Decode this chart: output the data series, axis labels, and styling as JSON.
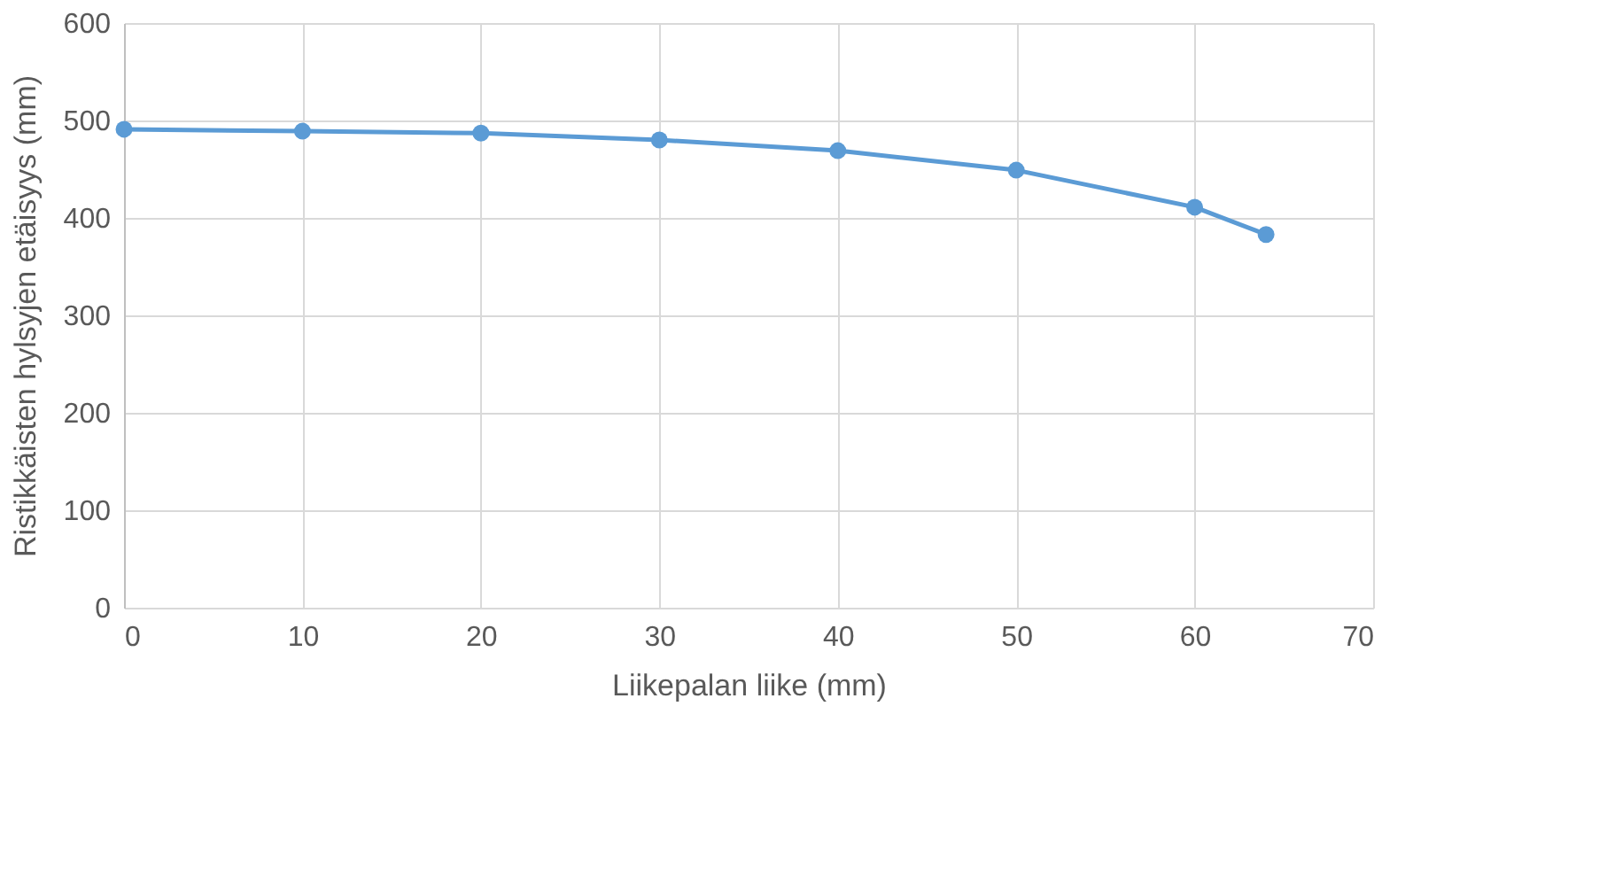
{
  "chart_data": {
    "type": "line",
    "xlabel": "Liikepalan liike (mm)",
    "ylabel": "Ristikkäisten hylsyjen etäisyys (mm)",
    "x": [
      0,
      10,
      20,
      30,
      40,
      50,
      60,
      64
    ],
    "series": [
      {
        "color": "#5b9bd5",
        "values": [
          491,
          489,
          487,
          480,
          469,
          449,
          411,
          383
        ]
      }
    ],
    "xlim": [
      0,
      70
    ],
    "xticks": [
      0,
      10,
      20,
      30,
      40,
      50,
      60,
      70
    ],
    "ylim": [
      0,
      600
    ],
    "yticks": [
      0,
      100,
      200,
      300,
      400,
      500,
      600
    ],
    "grid": true,
    "marker": "circle",
    "line_style": "solid"
  }
}
